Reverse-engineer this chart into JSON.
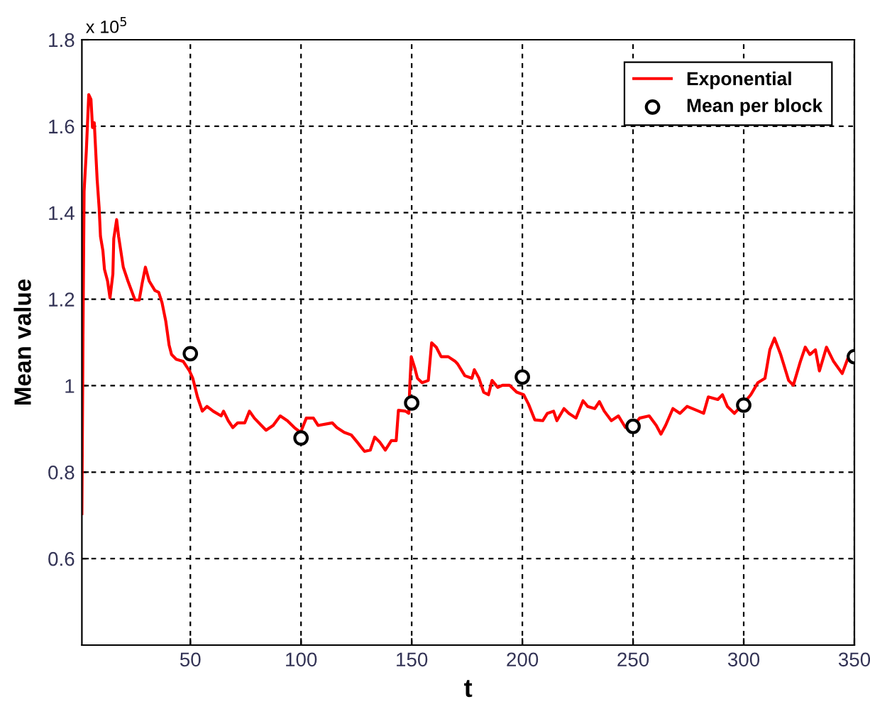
{
  "chart_data": {
    "type": "line",
    "xlabel": "t",
    "ylabel": "Mean value",
    "annotations": [
      "x 10$^{5}$"
    ],
    "xlim": [
      1,
      350
    ],
    "ylim": [
      0.4,
      1.8
    ],
    "xticks": [
      50,
      100,
      150,
      200,
      250,
      300,
      350
    ],
    "yticks": [
      0.6,
      0.8,
      1,
      1.2,
      1.4,
      1.6,
      1.8
    ],
    "grid": true,
    "legend": "top right",
    "series": [
      {
        "name": "Exponential",
        "color": "#ff0000",
        "line_style": "solid",
        "marker": "none",
        "x": [
          1,
          1.5,
          2,
          3.0,
          4.1,
          5.1,
          5.8,
          6.6,
          7.9,
          8.8,
          9.4,
          10.5,
          11.2,
          12.6,
          13.7,
          15.0,
          15.4,
          16.7,
          17.6,
          19.7,
          21.8,
          25.0,
          26.9,
          28.2,
          29.7,
          31.4,
          34.0,
          35.7,
          37.2,
          38.9,
          40.4,
          41.5,
          43.6,
          46.8,
          49.6,
          51.1,
          53.2,
          55.4,
          57.5,
          60.3,
          63.9,
          65.0,
          67.1,
          69.2,
          71.4,
          74.6,
          76.7,
          78.9,
          82.1,
          84.2,
          87.4,
          90.6,
          93.8,
          97.0,
          99.8,
          102.4,
          105.6,
          107.7,
          114.1,
          116.2,
          119.5,
          122.7,
          125.3,
          128.7,
          131.3,
          133.3,
          135.5,
          138.1,
          140.8,
          143.0,
          144.0,
          147.2,
          148.7,
          149.2,
          149.8,
          151.5,
          152.6,
          154.7,
          157.5,
          159.0,
          161.1,
          163.3,
          166.5,
          169.7,
          170.8,
          174.0,
          177.2,
          178.3,
          180.4,
          182.5,
          184.7,
          186.3,
          188.9,
          191.0,
          194.2,
          197.4,
          200.6,
          202.8,
          205.6,
          209.2,
          211.3,
          214.1,
          215.6,
          218.8,
          221.0,
          224.2,
          227.4,
          229.5,
          232.7,
          234.8,
          237.0,
          240.2,
          243.4,
          246.6,
          249.8,
          253.0,
          257.3,
          260.5,
          262.6,
          264.7,
          268.0,
          271.2,
          274.4,
          278.7,
          281.9,
          284.0,
          288.3,
          290.4,
          292.6,
          295.8,
          299.6,
          303.2,
          306.4,
          309.6,
          311.8,
          313.9,
          316.7,
          320.3,
          322.4,
          325.6,
          327.8,
          329.9,
          332.4,
          334.2,
          337.4,
          340.6,
          344.5,
          347.7,
          350
        ],
        "values": [
          0.704,
          1.12,
          1.449,
          1.542,
          1.673,
          1.662,
          1.597,
          1.608,
          1.476,
          1.411,
          1.345,
          1.312,
          1.269,
          1.242,
          1.203,
          1.258,
          1.34,
          1.384,
          1.345,
          1.274,
          1.242,
          1.198,
          1.198,
          1.236,
          1.274,
          1.242,
          1.22,
          1.216,
          1.192,
          1.149,
          1.094,
          1.072,
          1.061,
          1.056,
          1.034,
          1.017,
          0.974,
          0.941,
          0.952,
          0.941,
          0.93,
          0.941,
          0.919,
          0.903,
          0.914,
          0.914,
          0.941,
          0.925,
          0.908,
          0.897,
          0.908,
          0.93,
          0.919,
          0.903,
          0.892,
          0.925,
          0.925,
          0.908,
          0.914,
          0.903,
          0.892,
          0.886,
          0.87,
          0.848,
          0.851,
          0.881,
          0.87,
          0.851,
          0.873,
          0.873,
          0.943,
          0.941,
          0.936,
          1.007,
          1.067,
          1.039,
          1.017,
          1.007,
          1.012,
          1.099,
          1.089,
          1.067,
          1.067,
          1.056,
          1.05,
          1.023,
          1.017,
          1.037,
          1.017,
          0.985,
          0.979,
          1.012,
          0.996,
          1.001,
          1.001,
          0.985,
          0.979,
          0.957,
          0.921,
          0.919,
          0.936,
          0.941,
          0.919,
          0.947,
          0.936,
          0.925,
          0.965,
          0.952,
          0.947,
          0.963,
          0.941,
          0.919,
          0.93,
          0.903,
          0.906,
          0.925,
          0.93,
          0.908,
          0.888,
          0.908,
          0.947,
          0.936,
          0.952,
          0.943,
          0.936,
          0.974,
          0.968,
          0.979,
          0.952,
          0.936,
          0.957,
          0.979,
          1.007,
          1.017,
          1.083,
          1.11,
          1.072,
          1.012,
          1.001,
          1.056,
          1.089,
          1.072,
          1.083,
          1.034,
          1.089,
          1.056,
          1.028,
          1.072,
          1.061
        ]
      },
      {
        "name": "Mean per block",
        "type": "scatter",
        "color": "#000000",
        "marker": "circle",
        "x": [
          50,
          100,
          150,
          200,
          250,
          300,
          350
        ],
        "values": [
          1.074,
          0.879,
          0.96,
          1.02,
          0.906,
          0.955,
          1.067
        ]
      }
    ]
  }
}
